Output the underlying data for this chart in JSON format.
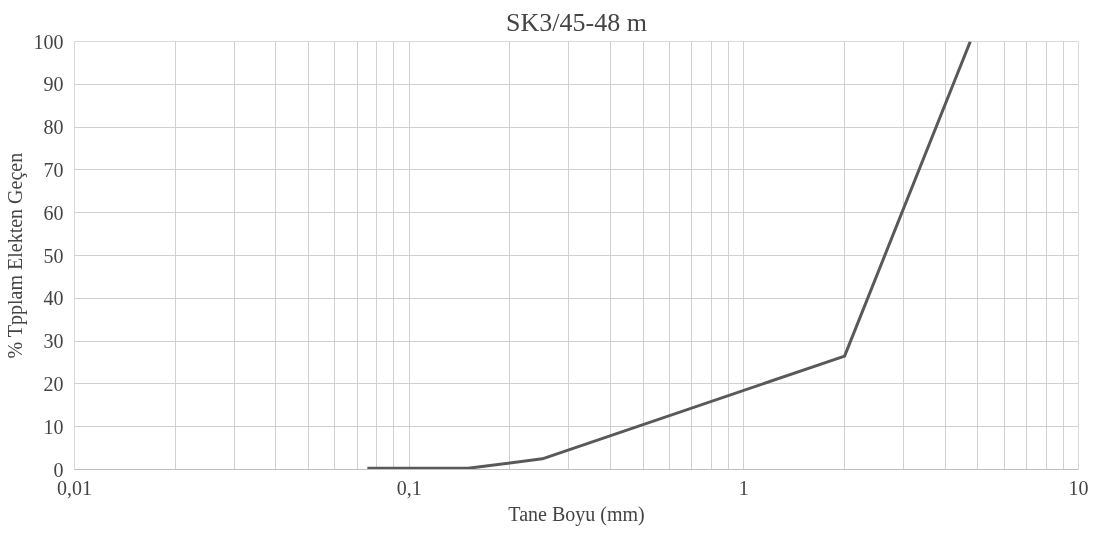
{
  "chart_data": {
    "type": "line",
    "title": "SK3/45-48 m",
    "xlabel": "Tane Boyu (mm)",
    "ylabel": "% Tpplam Elekten Geçen",
    "x": [
      0.075,
      0.15,
      0.25,
      2,
      4.75
    ],
    "series": [
      {
        "color": "#595959",
        "values": [
          0.3,
          0.3,
          2.5,
          26.5,
          100
        ]
      }
    ],
    "log": "x",
    "xlim": [
      0.01,
      10
    ],
    "ylim": [
      0,
      100
    ],
    "xticks": [
      {
        "value": 0.01,
        "label": "0,01"
      },
      {
        "value": 0.02,
        "label": null
      },
      {
        "value": 0.03,
        "label": null
      },
      {
        "value": 0.04,
        "label": null
      },
      {
        "value": 0.05,
        "label": null
      },
      {
        "value": 0.06,
        "label": null
      },
      {
        "value": 0.07,
        "label": null
      },
      {
        "value": 0.08,
        "label": null
      },
      {
        "value": 0.09,
        "label": null
      },
      {
        "value": 0.1,
        "label": "0,1"
      },
      {
        "value": 0.2,
        "label": null
      },
      {
        "value": 0.3,
        "label": null
      },
      {
        "value": 0.4,
        "label": null
      },
      {
        "value": 0.5,
        "label": null
      },
      {
        "value": 0.6,
        "label": null
      },
      {
        "value": 0.7,
        "label": null
      },
      {
        "value": 0.8,
        "label": null
      },
      {
        "value": 0.9,
        "label": null
      },
      1,
      {
        "value": 2,
        "label": null
      },
      {
        "value": 3,
        "label": null
      },
      {
        "value": 4,
        "label": null
      },
      {
        "value": 5,
        "label": null
      },
      {
        "value": 6,
        "label": null
      },
      {
        "value": 7,
        "label": null
      },
      {
        "value": 8,
        "label": null
      },
      {
        "value": 9,
        "label": null
      },
      10
    ],
    "yticks": [
      0,
      10,
      20,
      30,
      40,
      50,
      60,
      70,
      80,
      90,
      100
    ],
    "grid": true,
    "marker": "none",
    "line_style": "solid"
  }
}
